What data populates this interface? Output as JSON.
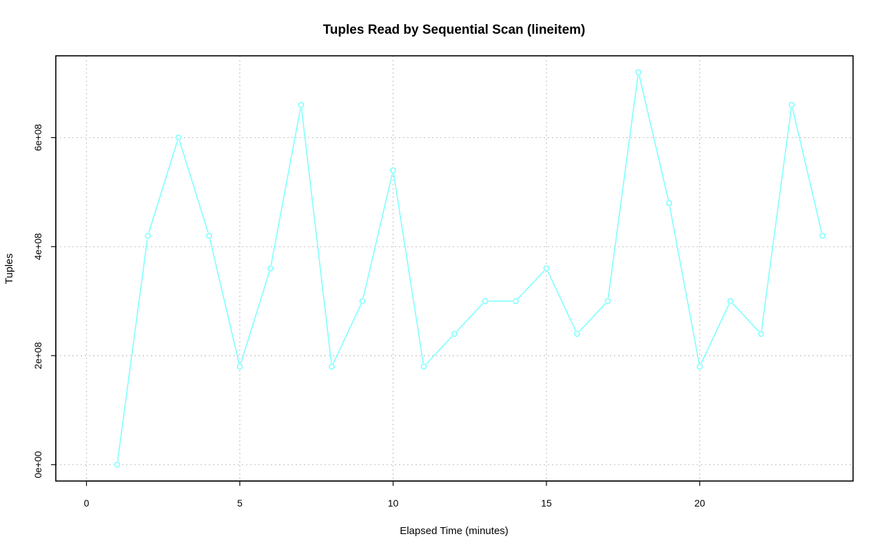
{
  "chart_data": {
    "type": "line",
    "title": "Tuples Read by Sequential Scan (lineitem)",
    "xlabel": "Elapsed Time (minutes)",
    "ylabel": "Tuples",
    "xlim": [
      -1,
      25
    ],
    "ylim": [
      -30000000,
      750000000
    ],
    "x_ticks": [
      0,
      5,
      10,
      15,
      20
    ],
    "x_tick_labels": [
      "0",
      "5",
      "10",
      "15",
      "20"
    ],
    "y_ticks": [
      0,
      200000000,
      400000000,
      600000000
    ],
    "y_tick_labels": [
      "0e+00",
      "2e+08",
      "4e+08",
      "6e+08"
    ],
    "grid": true,
    "series": [
      {
        "color": "#80ffff",
        "x": [
          1,
          2,
          3,
          4,
          5,
          6,
          7,
          8,
          9,
          10,
          11,
          12,
          13,
          14,
          15,
          16,
          17,
          18,
          19,
          20,
          21,
          22,
          23,
          24
        ],
        "y": [
          0,
          420000000,
          600000000,
          420000000,
          180000000,
          360000000,
          660000000,
          180000000,
          300000000,
          540000000,
          180000000,
          240000000,
          300000000,
          300000000,
          360000000,
          240000000,
          300000000,
          720000000,
          480000000,
          180000000,
          300000000,
          240000000,
          660000000,
          420000000
        ]
      }
    ]
  }
}
